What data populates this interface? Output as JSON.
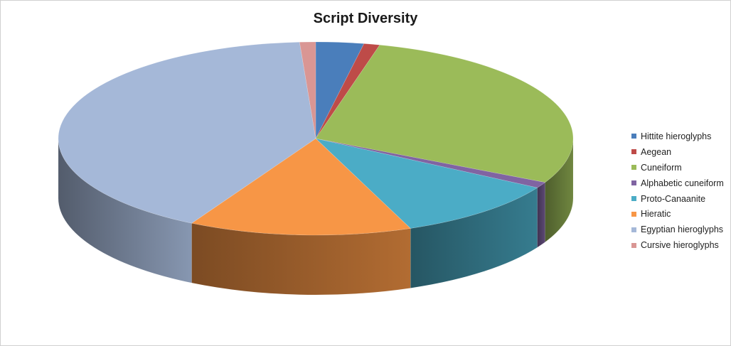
{
  "chart_data": {
    "type": "pie",
    "style": "3d-pie",
    "title": "Script Diversity",
    "legend_position": "right",
    "categories": [
      "Hittite hieroglyphs",
      "Aegean",
      "Cuneiform",
      "Alphabetic cuneiform",
      "Proto-Canaanite",
      "Hieratic",
      "Egyptian hieroglyphs",
      "Cursive hieroglyphs"
    ],
    "values": [
      3.0,
      1.0,
      28.5,
      1.0,
      10.5,
      14.0,
      41.0,
      1.0
    ],
    "colors": [
      "#4A7EBB",
      "#BE4B48",
      "#9BBB59",
      "#8064A2",
      "#4BACC6",
      "#F79646",
      "#A5B8D8",
      "#D99694"
    ]
  }
}
